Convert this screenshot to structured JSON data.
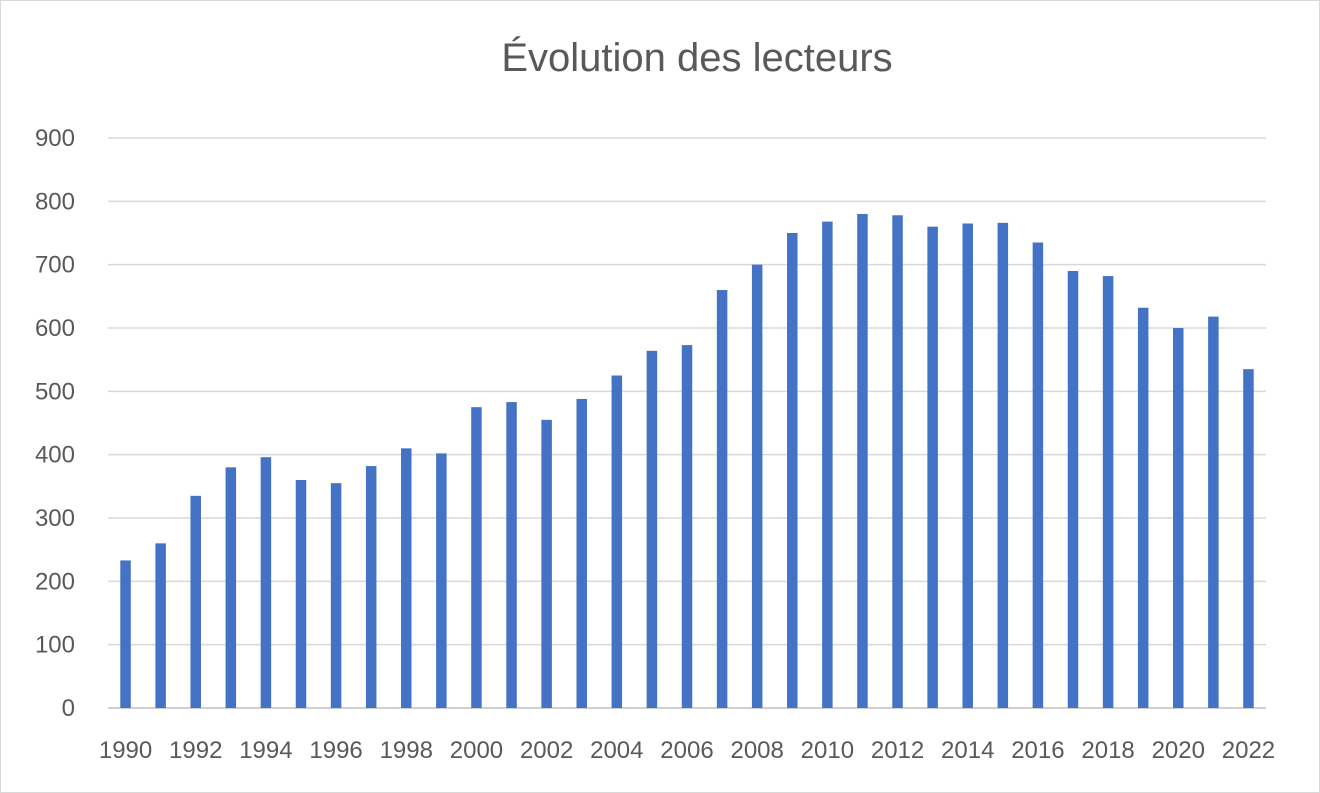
{
  "chart_data": {
    "type": "bar",
    "title": "Évolution des lecteurs",
    "xlabel": "",
    "ylabel": "",
    "ylim": [
      0,
      900
    ],
    "yticks": [
      0,
      100,
      200,
      300,
      400,
      500,
      600,
      700,
      800,
      900
    ],
    "grid": true,
    "legend": "none",
    "bar_color": "#4472c4",
    "categories": [
      "1990",
      "1991",
      "1992",
      "1993",
      "1994",
      "1995",
      "1996",
      "1997",
      "1998",
      "1999",
      "2000",
      "2001",
      "2002",
      "2003",
      "2004",
      "2005",
      "2006",
      "2007",
      "2008",
      "2009",
      "2010",
      "2011",
      "2012",
      "2013",
      "2014",
      "2015",
      "2016",
      "2017",
      "2018",
      "2019",
      "2020",
      "2021",
      "2022"
    ],
    "x_tick_labels": [
      "1990",
      "1992",
      "1994",
      "1996",
      "1998",
      "2000",
      "2002",
      "2004",
      "2006",
      "2008",
      "2010",
      "2012",
      "2014",
      "2016",
      "2018",
      "2020",
      "2022"
    ],
    "values": [
      233,
      260,
      335,
      380,
      396,
      360,
      355,
      382,
      410,
      402,
      475,
      483,
      455,
      488,
      525,
      564,
      573,
      660,
      700,
      750,
      768,
      780,
      778,
      760,
      765,
      766,
      735,
      690,
      682,
      632,
      600,
      618,
      535
    ]
  }
}
